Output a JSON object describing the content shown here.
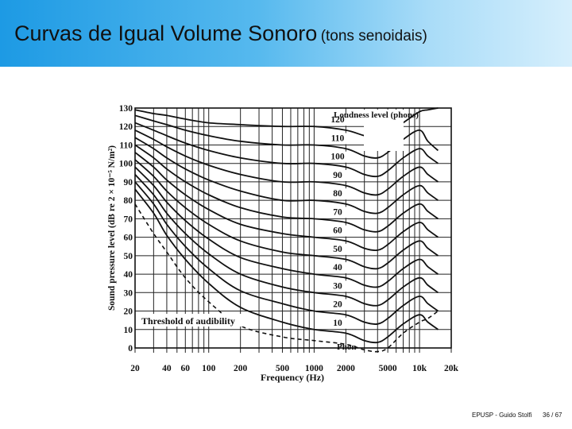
{
  "slide": {
    "title": "Curvas de Igual Volume Sonoro",
    "subtitle": "(tons senoidais)"
  },
  "footer": {
    "credit": "EPUSP - Guido Stolfi",
    "page": "36 / 67"
  },
  "colors": {
    "title_gradient_start": "#1d9ae4",
    "title_gradient_end": "#d6effc",
    "ink": "#111111"
  },
  "chart_data": {
    "type": "line",
    "xlabel": "Frequency (Hz)",
    "ylabel": "Sound pressure level (dB re 2 × 10⁻⁵ N/m²)",
    "x_scale": "log",
    "xlim": [
      20,
      20000
    ],
    "ylim": [
      0,
      130
    ],
    "x_ticks": [
      20,
      40,
      60,
      100,
      200,
      500,
      1000,
      2000,
      5000,
      10000,
      20000
    ],
    "x_tick_labels": [
      "20",
      "40",
      "60",
      "100",
      "200",
      "500",
      "1000",
      "2000",
      "5000",
      "10k",
      "20k"
    ],
    "y_ticks": [
      0,
      10,
      20,
      30,
      40,
      50,
      60,
      70,
      80,
      90,
      100,
      110,
      120,
      130
    ],
    "grid": true,
    "legend_title": "Loudness level (phons)",
    "annotations": [
      "Threshold of audibility",
      "Phon"
    ],
    "x": [
      20,
      30,
      40,
      60,
      100,
      200,
      500,
      1000,
      2000,
      3000,
      4000,
      5000,
      7000,
      10000,
      12000,
      15000
    ],
    "series": [
      {
        "name": "120",
        "values": [
          129,
          127,
          126,
          124,
          122,
          121,
          120,
          120,
          118,
          115,
          114,
          116,
          122,
          128,
          129,
          130
        ]
      },
      {
        "name": "110",
        "values": [
          126,
          123,
          121,
          118,
          115,
          112,
          110,
          110,
          108,
          104,
          103,
          106,
          113,
          118,
          112,
          107
        ]
      },
      {
        "name": "100",
        "values": [
          122,
          118,
          115,
          111,
          107,
          103,
          100,
          100,
          98,
          94,
          93,
          96,
          103,
          108,
          104,
          100
        ]
      },
      {
        "name": "90",
        "values": [
          118,
          113,
          109,
          104,
          99,
          94,
          90,
          90,
          88,
          84,
          83,
          86,
          93,
          98,
          94,
          90
        ]
      },
      {
        "name": "80",
        "values": [
          114,
          108,
          103,
          97,
          91,
          85,
          80,
          80,
          78,
          74,
          73,
          76,
          83,
          88,
          84,
          80
        ]
      },
      {
        "name": "70",
        "values": [
          110,
          103,
          97,
          90,
          83,
          76,
          71,
          70,
          68,
          64,
          63,
          66,
          73,
          78,
          74,
          70
        ]
      },
      {
        "name": "60",
        "values": [
          106,
          98,
          91,
          83,
          75,
          67,
          62,
          60,
          58,
          54,
          53,
          56,
          63,
          68,
          64,
          60
        ]
      },
      {
        "name": "50",
        "values": [
          102,
          93,
          85,
          76,
          67,
          58,
          52,
          50,
          48,
          44,
          43,
          46,
          53,
          58,
          54,
          50
        ]
      },
      {
        "name": "40",
        "values": [
          98,
          88,
          79,
          69,
          59,
          49,
          43,
          40,
          38,
          34,
          33,
          36,
          43,
          48,
          44,
          40
        ]
      },
      {
        "name": "30",
        "values": [
          94,
          83,
          73,
          62,
          51,
          40,
          33,
          30,
          28,
          24,
          23,
          26,
          33,
          38,
          34,
          30
        ]
      },
      {
        "name": "20",
        "values": [
          90,
          78,
          67,
          55,
          43,
          31,
          24,
          20,
          18,
          14,
          13,
          16,
          23,
          28,
          24,
          20
        ]
      },
      {
        "name": "10",
        "values": [
          86,
          73,
          61,
          48,
          35,
          22,
          14,
          10,
          8,
          4,
          3,
          6,
          13,
          18,
          14,
          10
        ]
      },
      {
        "name": "Threshold of audibility",
        "values": [
          78,
          62,
          52,
          38,
          25,
          12,
          6,
          4,
          2,
          -1,
          -2,
          0,
          8,
          14,
          16,
          20
        ]
      }
    ]
  }
}
